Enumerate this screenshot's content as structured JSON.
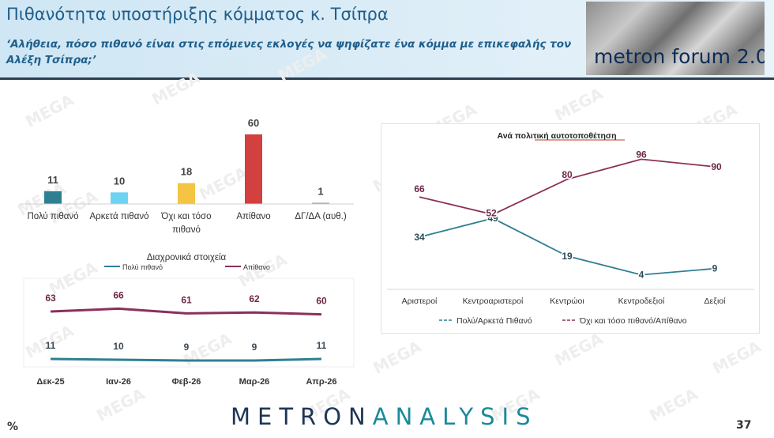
{
  "header": {
    "title": "Πιθανότητα υποστήριξης κόμματος κ. Τσίπρα",
    "subtitle": "‘Αλήθεια, πόσο πιθανό είναι στις επόμενες εκλογές να ψηφίζατε ένα κόμμα με επικεφαλής τον Αλέξη Τσίπρα;’",
    "logo_text": "metron forum 2.0"
  },
  "watermark": "MEGA",
  "footer": {
    "brand_a": "METRON",
    "brand_b": "ANALYSIS",
    "percent": "%",
    "page": "37"
  },
  "colors": {
    "teal": "#2f7f93",
    "maroon": "#8c3059",
    "lightblue": "#6ed3f2",
    "yellow": "#f4c542",
    "red": "#d2403f",
    "grey": "#9a9a9a"
  },
  "chart_data": [
    {
      "type": "bar",
      "categories": [
        "Πολύ πιθανό",
        "Αρκετά πιθανό",
        "Όχι και τόσο πιθανό",
        "Απίθανο",
        "ΔΓ/ΔΑ (αυθ.)"
      ],
      "values": [
        11,
        10,
        18,
        60,
        1
      ],
      "colors": [
        "#2f7f93",
        "#6ed3f2",
        "#f4c542",
        "#d2403f",
        "#9a9a9a"
      ],
      "ylim": [
        0,
        60
      ]
    },
    {
      "type": "line",
      "title": "Διαχρονικά στοιχεία",
      "categories": [
        "Δεκ-25",
        "Ιαν-26",
        "Φεβ-26",
        "Μαρ-26",
        "Απρ-26"
      ],
      "series": [
        {
          "name": "Πολύ πιθανό",
          "values": [
            11,
            10,
            9,
            9,
            11
          ],
          "color": "#2f7f93"
        },
        {
          "name": "Απίθανο",
          "values": [
            63,
            66,
            61,
            62,
            60
          ],
          "color": "#8c3059"
        }
      ],
      "legend": "top"
    },
    {
      "type": "line",
      "title": "Ανά πολιτική αυτοτοποθέτηση",
      "categories": [
        "Αριστεροί",
        "Κεντροαριστεροί",
        "Κεντρώοι",
        "Κεντροδεξιοί",
        "Δεξιοί"
      ],
      "series": [
        {
          "name": "Πολύ/Αρκετά Πιθανό",
          "values": [
            34,
            49,
            19,
            4,
            9
          ],
          "color": "#2f7f93"
        },
        {
          "name": "Όχι και τόσο πιθανό/Απίθανο",
          "values": [
            66,
            52,
            80,
            96,
            90
          ],
          "color": "#8c3059"
        }
      ],
      "ylim": [
        0,
        100
      ],
      "legend": "bottom"
    }
  ]
}
